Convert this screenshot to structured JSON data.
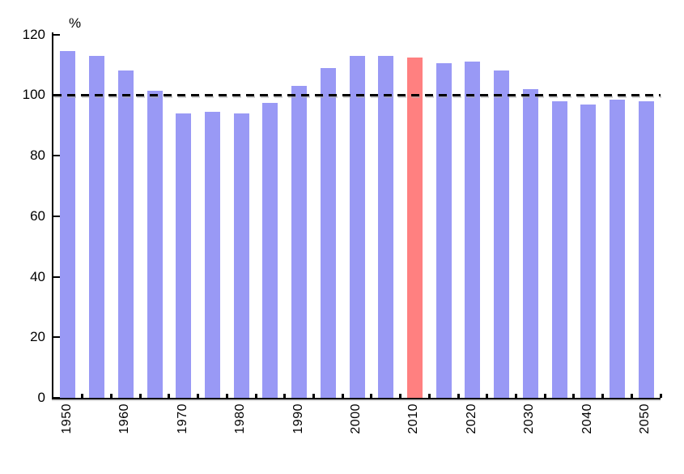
{
  "chart_data": {
    "type": "bar",
    "title": "",
    "ylabel": "%",
    "categories": [
      "1950",
      "1955",
      "1960",
      "1965",
      "1970",
      "1975",
      "1980",
      "1985",
      "1990",
      "1995",
      "2000",
      "2005",
      "2010",
      "2015",
      "2020",
      "2025",
      "2030",
      "2035",
      "2040",
      "2045",
      "2050"
    ],
    "values": [
      114.5,
      113,
      108,
      101.5,
      94,
      94.5,
      94,
      97.5,
      103,
      109,
      113,
      113,
      112.5,
      110.5,
      111,
      108,
      102,
      98,
      97,
      98.5,
      98
    ],
    "bar_color": "#9999F5",
    "highlight": {
      "category": "2010",
      "color": "#FF8080"
    },
    "reference_line": {
      "value": 100,
      "style": "dashed",
      "color": "#000000"
    },
    "y_axis": {
      "min": 0,
      "max": 120,
      "tick_interval": 20,
      "tick_labels": [
        "0",
        "20",
        "40",
        "60",
        "80",
        "100",
        "120"
      ]
    },
    "x_axis": {
      "labeled_ticks": [
        "1950",
        "1960",
        "1970",
        "1980",
        "1990",
        "2000",
        "2010",
        "2020",
        "2030",
        "2040",
        "2050"
      ]
    },
    "grid": "off",
    "legend": "none",
    "background": "#FFFFFF"
  }
}
